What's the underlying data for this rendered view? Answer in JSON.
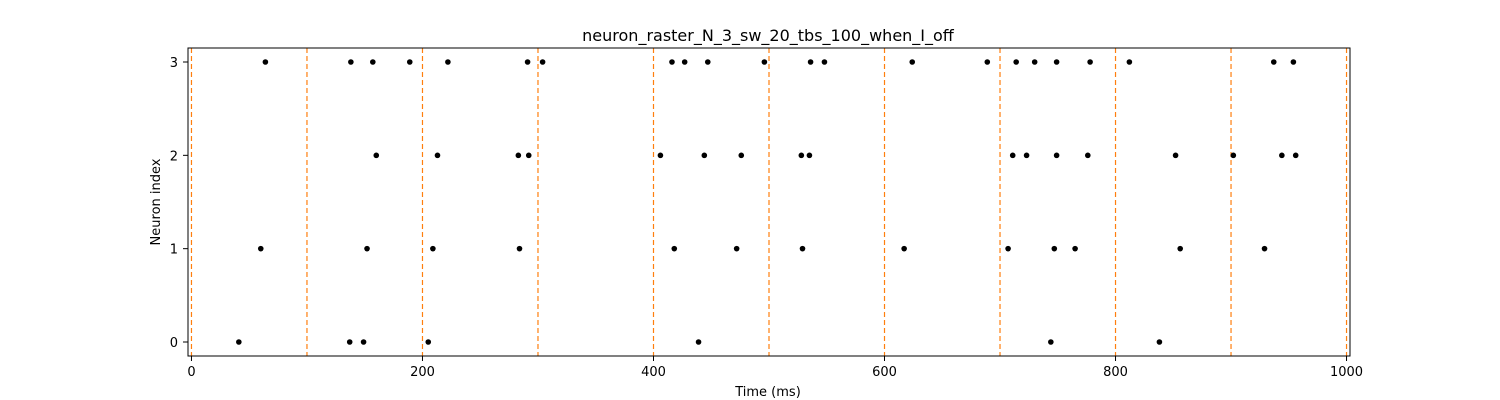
{
  "chart_data": {
    "type": "scatter",
    "title": "neuron_raster_N_3_sw_20_tbs_100_when_I_off",
    "xlabel": "Time (ms)",
    "ylabel": "Neuron index",
    "xlim": [
      -3,
      1003
    ],
    "ylim": [
      -0.15,
      3.15
    ],
    "x_ticks": [
      0,
      200,
      400,
      600,
      800,
      1000
    ],
    "y_ticks": [
      0,
      1,
      2,
      3
    ],
    "grid": false,
    "legend": "none",
    "vlines": [
      0,
      100,
      200,
      300,
      400,
      500,
      600,
      700,
      800,
      900,
      1000
    ],
    "vline_color": "#ff7f0e",
    "marker_color": "#000000",
    "series": [
      {
        "neuron": 0,
        "x": [
          41,
          137,
          149,
          205,
          439,
          744,
          838
        ]
      },
      {
        "neuron": 1,
        "x": [
          60,
          152,
          209,
          284,
          418,
          472,
          529,
          617,
          707,
          747,
          765,
          856,
          929
        ]
      },
      {
        "neuron": 2,
        "x": [
          160,
          213,
          283,
          292,
          406,
          444,
          476,
          528,
          535,
          711,
          723,
          749,
          776,
          852,
          902,
          944,
          956
        ]
      },
      {
        "neuron": 3,
        "x": [
          64,
          138,
          157,
          189,
          222,
          291,
          304,
          416,
          427,
          447,
          496,
          536,
          548,
          624,
          689,
          714,
          730,
          749,
          778,
          812,
          937,
          954
        ]
      }
    ]
  }
}
